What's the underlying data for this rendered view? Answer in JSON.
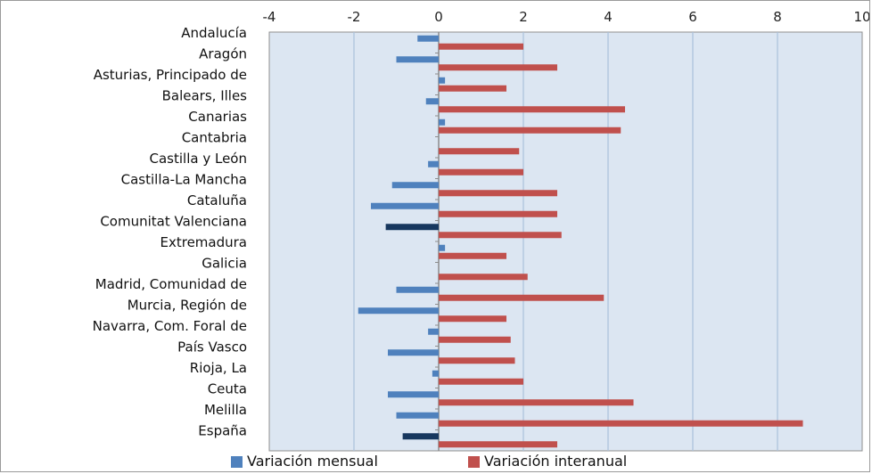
{
  "chart_data": {
    "type": "bar",
    "orientation": "horizontal",
    "categories": [
      "Andalucía",
      "Aragón",
      "Asturias, Principado de",
      "Balears, Illes",
      "Canarias",
      "Cantabria",
      "Castilla y León",
      "Castilla-La Mancha",
      "Cataluña",
      "Comunitat Valenciana",
      "Extremadura",
      "Galicia",
      "Madrid, Comunidad de",
      "Murcia, Región de",
      "Navarra, Com. Foral de",
      "País Vasco",
      "Rioja, La",
      "Ceuta",
      "Melilla",
      "España"
    ],
    "series": [
      {
        "name": "Variación mensual",
        "color": "#4f81bd",
        "values": [
          -0.5,
          -1.0,
          0.15,
          -0.3,
          0.15,
          0.0,
          -0.25,
          -1.1,
          -1.6,
          -1.25,
          0.15,
          0.0,
          -1.0,
          -1.9,
          -0.25,
          -1.2,
          -0.15,
          -1.2,
          -1.0,
          -0.85
        ],
        "highlight_color": "#17375e",
        "highlight_indices": [
          9,
          19
        ]
      },
      {
        "name": "Variación interanual",
        "color": "#c0504d",
        "values": [
          2.0,
          2.8,
          1.6,
          4.4,
          4.3,
          1.9,
          2.0,
          2.8,
          2.8,
          2.9,
          1.6,
          2.1,
          3.9,
          1.6,
          1.7,
          1.8,
          2.0,
          4.6,
          8.6,
          2.8
        ]
      }
    ],
    "x_ticks": [
      "-4",
      "-2",
      "0",
      "2",
      "4",
      "6",
      "8",
      "10"
    ],
    "xlim": [
      -4,
      10
    ],
    "x_axis_position": "top",
    "grid": true,
    "plot_background": "#dce6f2",
    "gridline_color": "#a9c0dc",
    "legend_position": "bottom"
  }
}
